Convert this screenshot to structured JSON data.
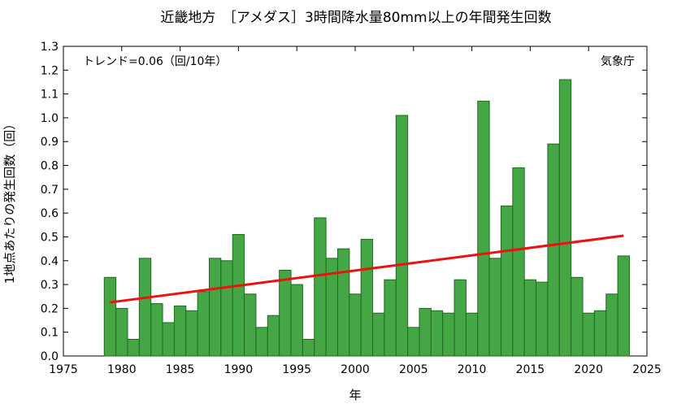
{
  "chart_data": {
    "type": "bar",
    "title": "近畿地方　［アメダス］3時間降水量80mm以上の年間発生回数",
    "xlabel": "年",
    "ylabel": "1地点あたりの発生回数（回）",
    "trend_label": "トレンド=0.06（回/10年）",
    "source_label": "気象庁",
    "xlim": [
      1975,
      2025
    ],
    "ylim": [
      0,
      1.3
    ],
    "x_ticks": [
      1975,
      1980,
      1985,
      1990,
      1995,
      2000,
      2005,
      2010,
      2015,
      2020,
      2025
    ],
    "y_ticks": [
      0.0,
      0.1,
      0.2,
      0.3,
      0.4,
      0.5,
      0.6,
      0.7,
      0.8,
      0.9,
      1.0,
      1.1,
      1.2,
      1.3
    ],
    "years": [
      1979,
      1980,
      1981,
      1982,
      1983,
      1984,
      1985,
      1986,
      1987,
      1988,
      1989,
      1990,
      1991,
      1992,
      1993,
      1994,
      1995,
      1996,
      1997,
      1998,
      1999,
      2000,
      2001,
      2002,
      2003,
      2004,
      2005,
      2006,
      2007,
      2008,
      2009,
      2010,
      2011,
      2012,
      2013,
      2014,
      2015,
      2016,
      2017,
      2018,
      2019,
      2020,
      2021,
      2022,
      2023
    ],
    "values": [
      0.33,
      0.2,
      0.07,
      0.41,
      0.22,
      0.14,
      0.21,
      0.19,
      0.27,
      0.41,
      0.4,
      0.51,
      0.26,
      0.12,
      0.17,
      0.36,
      0.3,
      0.07,
      0.58,
      0.41,
      0.45,
      0.26,
      0.49,
      0.18,
      0.32,
      1.01,
      0.12,
      0.2,
      0.19,
      0.18,
      0.32,
      0.18,
      1.07,
      0.41,
      0.63,
      0.79,
      0.32,
      0.31,
      0.89,
      1.16,
      0.33,
      0.18,
      0.19,
      0.26,
      0.42
    ],
    "trend": {
      "x": [
        1979,
        2023
      ],
      "y": [
        0.225,
        0.505
      ]
    },
    "colors": {
      "bar_fill": "#44a644",
      "bar_stroke": "#1f6b1f",
      "trend": "#ee1111"
    }
  }
}
